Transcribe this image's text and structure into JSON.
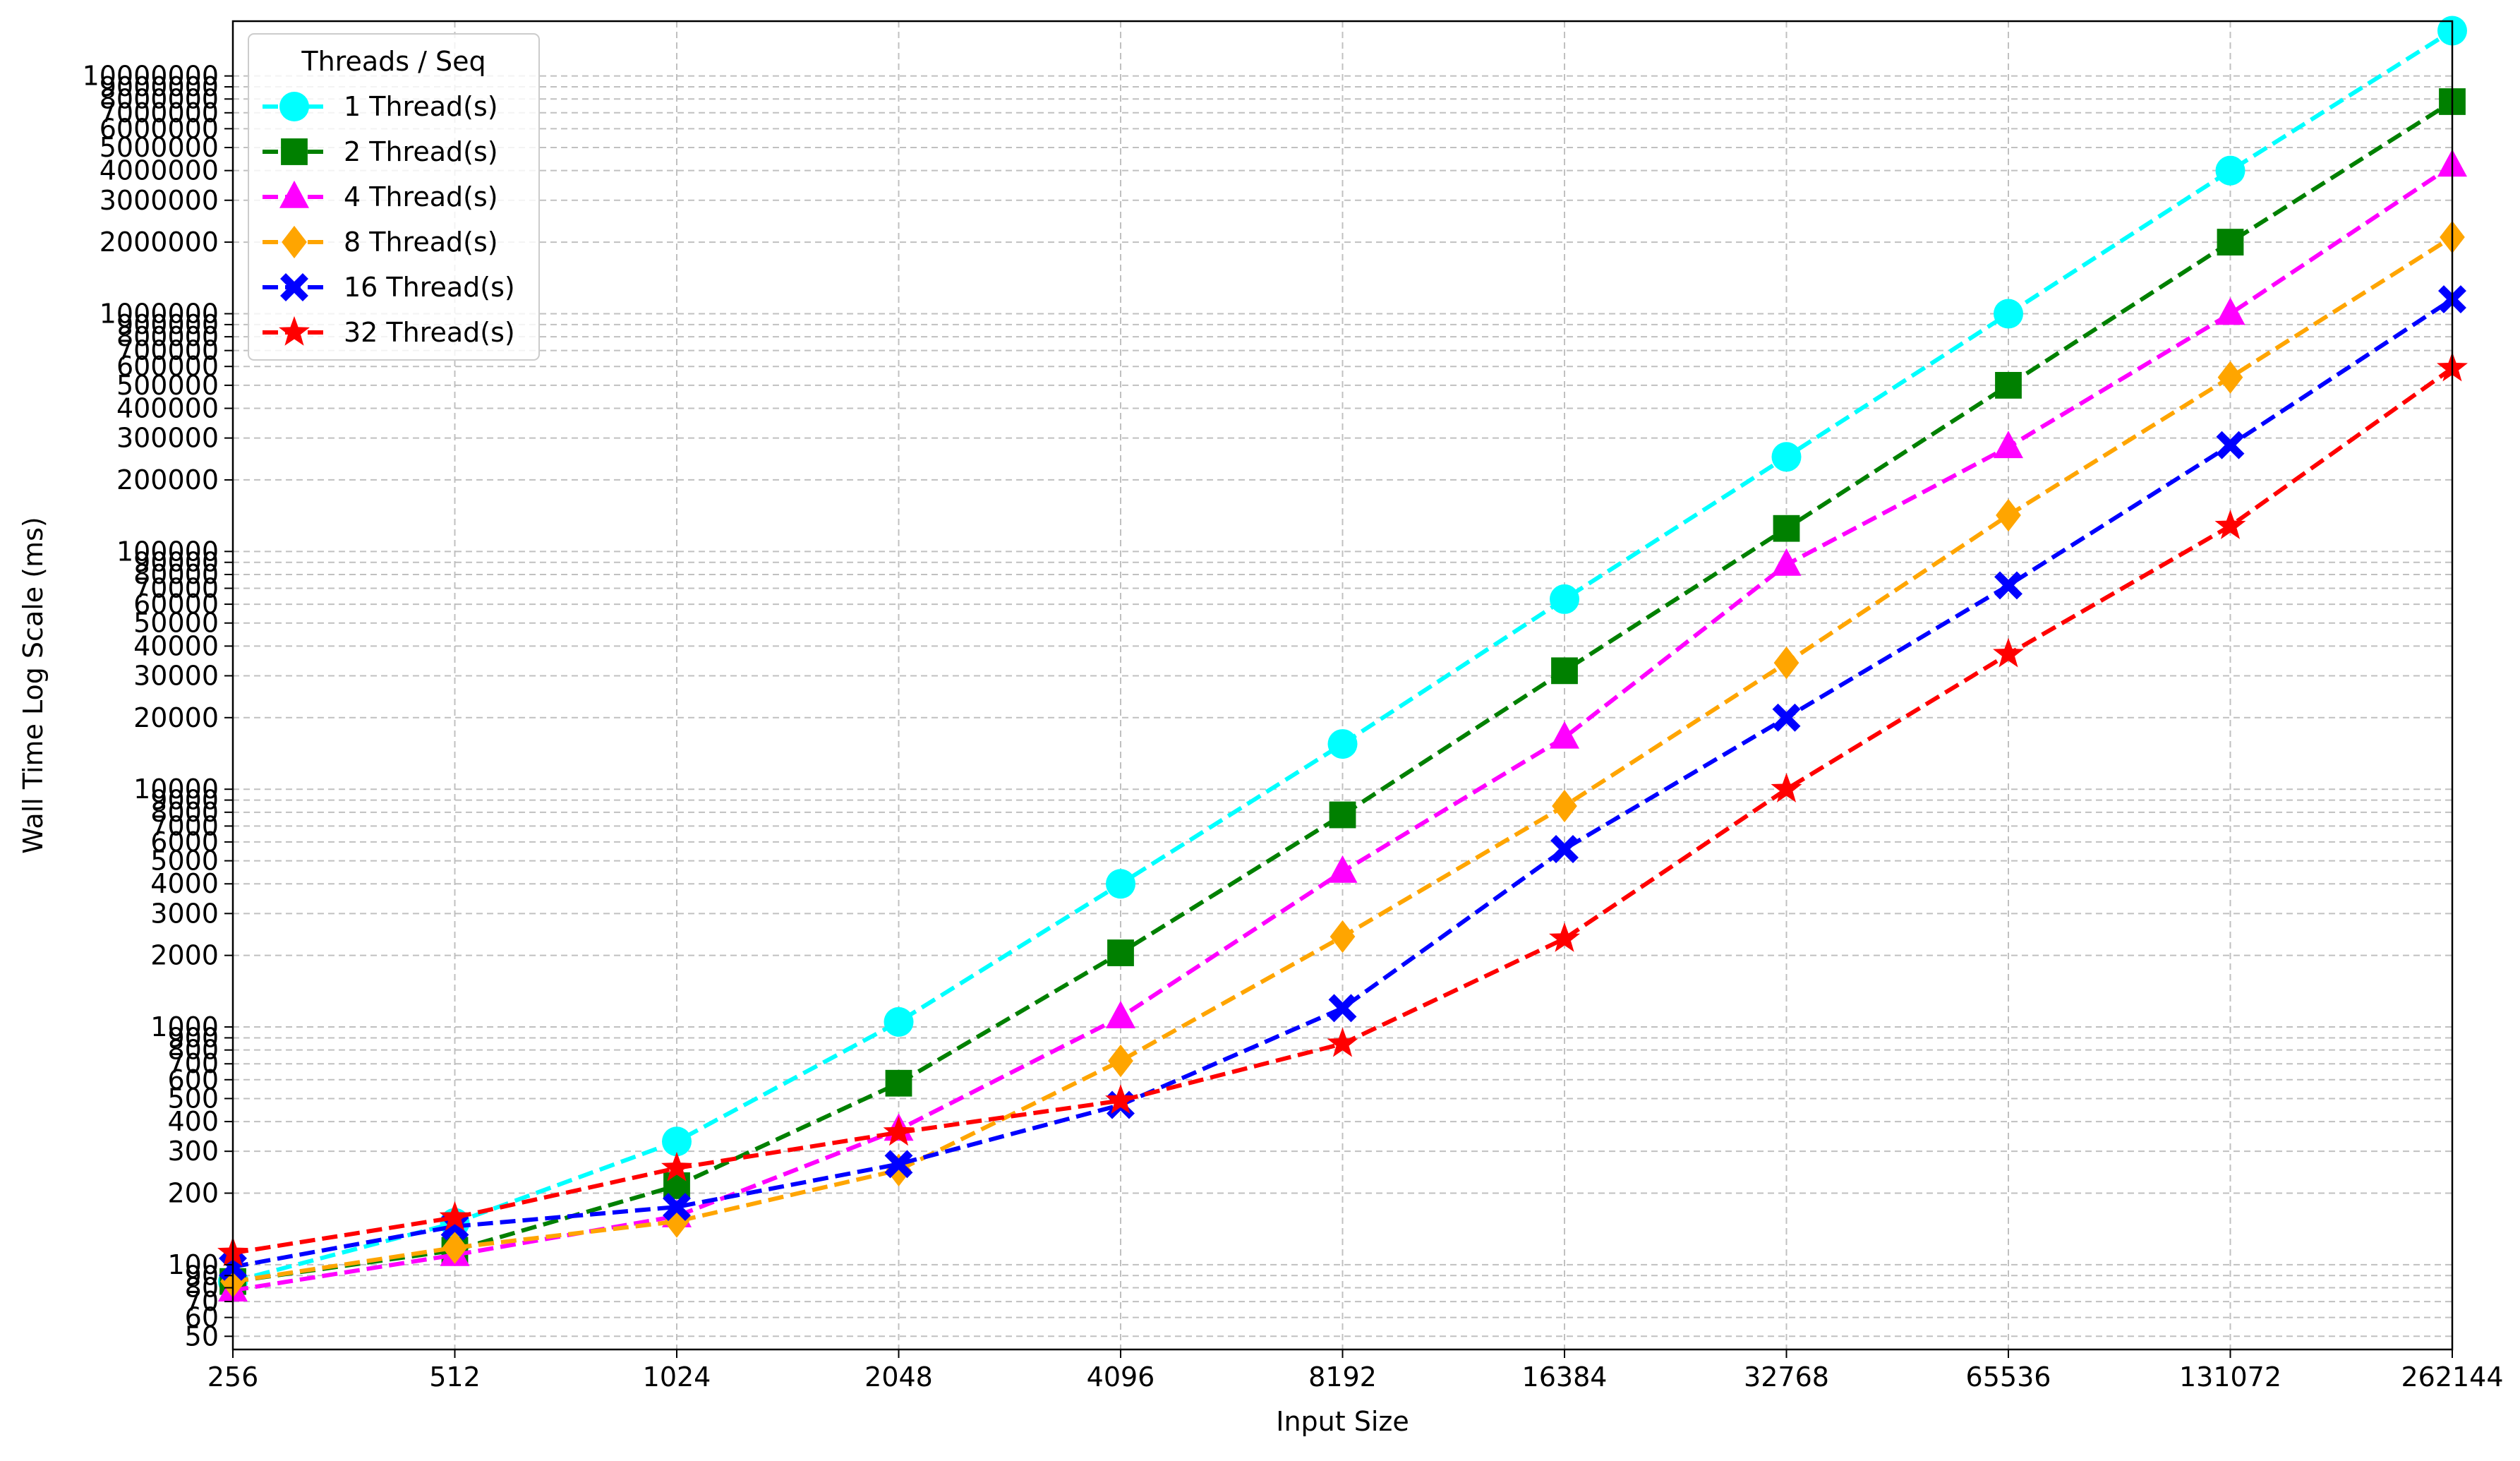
{
  "chart_data": {
    "type": "line",
    "title": "",
    "xlabel": "Input Size",
    "ylabel": "Wall Time Log Scale (ms)",
    "x_scale": "log2",
    "y_scale": "log10",
    "grid": true,
    "legend_title": "Threads / Seq",
    "legend_position": "top-left",
    "categories": [
      "256",
      "512",
      "1024",
      "2048",
      "4096",
      "8192",
      "16384",
      "32768",
      "65536",
      "131072",
      "262144"
    ],
    "x": [
      256,
      512,
      1024,
      2048,
      4096,
      8192,
      16384,
      32768,
      65536,
      131072,
      262144
    ],
    "y_ticks": [
      50,
      60,
      70,
      80,
      90,
      100,
      200,
      300,
      400,
      500,
      600,
      700,
      800,
      900,
      1000,
      2000,
      3000,
      4000,
      5000,
      6000,
      7000,
      8000,
      9000,
      10000,
      20000,
      30000,
      40000,
      50000,
      60000,
      70000,
      80000,
      90000,
      100000,
      200000,
      300000,
      400000,
      500000,
      600000,
      700000,
      800000,
      900000,
      1000000,
      2000000,
      3000000,
      4000000,
      5000000,
      6000000,
      7000000,
      8000000,
      9000000,
      10000000
    ],
    "series": [
      {
        "name": "1 Thread(s)",
        "color": "#00ffff",
        "marker": "circle",
        "values": [
          85,
          150,
          330,
          1050,
          4000,
          15500,
          63000,
          250000,
          1000000,
          4000000,
          15500000
        ]
      },
      {
        "name": "2 Thread(s)",
        "color": "#008000",
        "marker": "square",
        "values": [
          85,
          115,
          215,
          580,
          2050,
          7800,
          31500,
          125000,
          500000,
          2000000,
          7800000
        ]
      },
      {
        "name": "4 Thread(s)",
        "color": "#ff00ff",
        "marker": "triangle",
        "values": [
          78,
          110,
          160,
          370,
          1100,
          4500,
          16500,
          88000,
          275000,
          1000000,
          4200000
        ]
      },
      {
        "name": "8 Thread(s)",
        "color": "#ffa500",
        "marker": "diamond",
        "values": [
          85,
          118,
          152,
          250,
          720,
          2400,
          8500,
          34000,
          142000,
          540000,
          2100000
        ]
      },
      {
        "name": "16 Thread(s)",
        "color": "#0000ff",
        "marker": "x",
        "values": [
          98,
          145,
          175,
          265,
          470,
          1200,
          5600,
          20000,
          72000,
          280000,
          1150000
        ]
      },
      {
        "name": "32 Thread(s)",
        "color": "#ff0000",
        "marker": "star",
        "values": [
          112,
          158,
          255,
          360,
          490,
          850,
          2350,
          10000,
          37000,
          128000,
          590000
        ]
      }
    ]
  }
}
